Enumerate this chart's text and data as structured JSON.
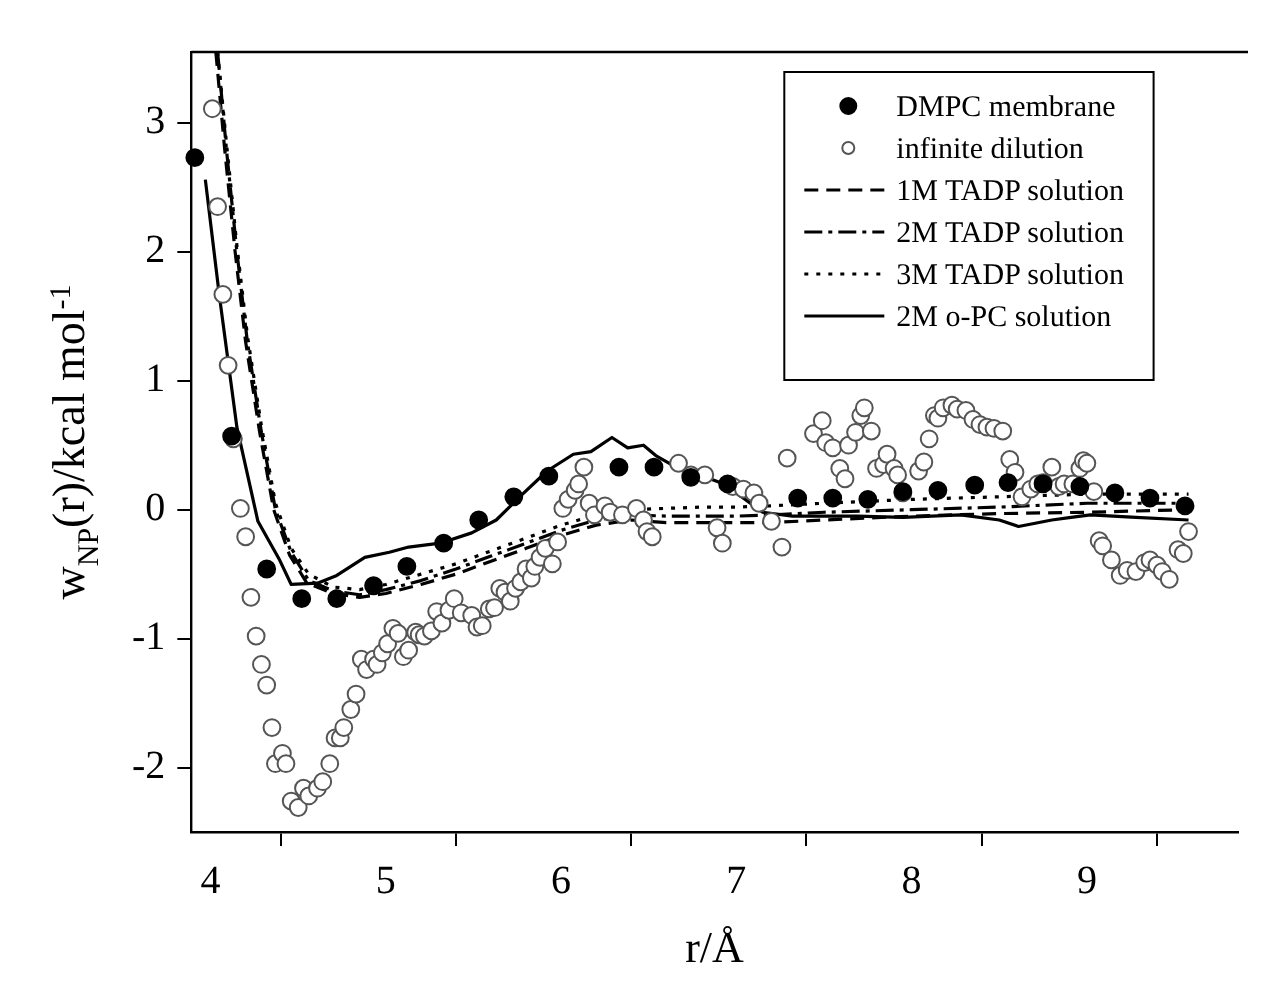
{
  "chart_data": {
    "type": "scatter",
    "xlabel": "r/Å",
    "ylabel": "w$_{NP}$(r)/kcal mol$^{-1}$",
    "xlim": [
      3.89,
      9.86
    ],
    "ylim": [
      -2.5,
      3.55
    ],
    "xticks": [
      4,
      {
        "value": 4.4,
        "label": null
      },
      5,
      {
        "value": 5.4,
        "label": null
      },
      6,
      {
        "value": 6.4,
        "label": null
      },
      7,
      {
        "value": 7.4,
        "label": null
      },
      8,
      {
        "value": 8.4,
        "label": null
      },
      9,
      {
        "value": 9.4,
        "label": null
      }
    ],
    "yticks": [
      -2,
      -1,
      0,
      1,
      2,
      3
    ],
    "grid": false,
    "legend": "top right",
    "series": [
      {
        "name": "DMPC membrane",
        "type": "scatter",
        "marker": "circle",
        "color": "#000000",
        "x": [
          3.91,
          4.12,
          4.32,
          4.52,
          4.72,
          4.93,
          5.12,
          5.33,
          5.53,
          5.73,
          5.93,
          6.33,
          6.53,
          6.74,
          6.95,
          7.35,
          7.55,
          7.75,
          7.95,
          8.15,
          8.36,
          8.55,
          8.75,
          8.96,
          9.16,
          9.36,
          9.56
        ],
        "values": [
          2.73,
          0.57,
          -0.46,
          -0.69,
          -0.69,
          -0.59,
          -0.44,
          -0.26,
          -0.08,
          0.1,
          0.26,
          0.33,
          0.33,
          0.25,
          0.2,
          0.09,
          0.09,
          0.08,
          0.14,
          0.15,
          0.19,
          0.21,
          0.2,
          0.18,
          0.13,
          0.09,
          0.03
        ]
      },
      {
        "name": "infinite dilution",
        "type": "scatter",
        "marker": "circle",
        "color": "#555555",
        "x": [
          4.01,
          4.04,
          4.07,
          4.1,
          4.13,
          4.17,
          4.2,
          4.23,
          4.26,
          4.29,
          4.32,
          4.35,
          4.37,
          4.41,
          4.43,
          4.46,
          4.5,
          4.53,
          4.56,
          4.61,
          4.64,
          4.68,
          4.71,
          4.74,
          4.76,
          4.8,
          4.83,
          4.86,
          4.89,
          4.93,
          4.95,
          4.98,
          5.01,
          5.04,
          5.07,
          5.1,
          5.13,
          5.17,
          5.19,
          5.22,
          5.26,
          5.29,
          5.32,
          5.36,
          5.39,
          5.43,
          5.49,
          5.52,
          5.55,
          5.59,
          5.62,
          5.65,
          5.68,
          5.71,
          5.74,
          5.77,
          5.8,
          5.83,
          5.85,
          5.88,
          5.91,
          5.95,
          5.98,
          6.01,
          6.04,
          6.08,
          6.1,
          6.13,
          6.16,
          6.19,
          6.25,
          6.28,
          6.35,
          6.43,
          6.47,
          6.49,
          6.52,
          6.67,
          6.74,
          6.82,
          6.89,
          6.92,
          6.98,
          7.04,
          7.1,
          7.13,
          7.2,
          7.26,
          7.29,
          7.44,
          7.49,
          7.51,
          7.55,
          7.59,
          7.62,
          7.64,
          7.68,
          7.71,
          7.73,
          7.77,
          7.8,
          7.84,
          7.86,
          7.9,
          7.92,
          7.95,
          8.04,
          8.07,
          8.1,
          8.13,
          8.15,
          8.18,
          8.23,
          8.26,
          8.31,
          8.35,
          8.39,
          8.43,
          8.47,
          8.52,
          8.56,
          8.59,
          8.63,
          8.68,
          8.72,
          8.75,
          8.8,
          8.84,
          8.87,
          8.92,
          8.96,
          8.98,
          9.0,
          9.04,
          9.07,
          9.09,
          9.14,
          9.19,
          9.23,
          9.28,
          9.33,
          9.36,
          9.4,
          9.43,
          9.47,
          9.52,
          9.55,
          9.58
        ],
        "values": [
          3.11,
          2.35,
          1.67,
          1.12,
          0.55,
          0.01,
          -0.21,
          -0.68,
          -0.98,
          -1.2,
          -1.36,
          -1.69,
          -1.97,
          -1.89,
          -1.97,
          -2.26,
          -2.31,
          -2.16,
          -2.22,
          -2.16,
          -2.11,
          -1.97,
          -1.77,
          -1.77,
          -1.69,
          -1.55,
          -1.43,
          -1.16,
          -1.24,
          -1.16,
          -1.2,
          -1.11,
          -1.04,
          -0.92,
          -0.96,
          -1.14,
          -1.09,
          -0.95,
          -0.97,
          -0.98,
          -0.94,
          -0.79,
          -0.88,
          -0.78,
          -0.69,
          -0.8,
          -0.82,
          -0.91,
          -0.9,
          -0.77,
          -0.76,
          -0.61,
          -0.64,
          -0.71,
          -0.61,
          -0.56,
          -0.46,
          -0.53,
          -0.44,
          -0.37,
          -0.3,
          -0.42,
          -0.25,
          0.01,
          0.08,
          0.15,
          0.2,
          0.33,
          0.05,
          -0.04,
          0.03,
          -0.02,
          -0.04,
          0.01,
          -0.08,
          -0.17,
          -0.21,
          0.36,
          0.27,
          0.27,
          -0.14,
          -0.26,
          0.18,
          0.16,
          0.13,
          0.05,
          -0.09,
          -0.29,
          0.4,
          0.59,
          0.69,
          0.52,
          0.48,
          0.32,
          0.24,
          0.5,
          0.6,
          0.73,
          0.79,
          0.61,
          0.32,
          0.35,
          0.43,
          0.32,
          0.27,
          0.13,
          0.3,
          0.37,
          0.55,
          0.73,
          0.71,
          0.79,
          0.81,
          0.78,
          0.77,
          0.7,
          0.66,
          0.64,
          0.63,
          0.61,
          0.39,
          0.29,
          0.1,
          0.16,
          0.2,
          0.21,
          0.33,
          0.18,
          0.2,
          0.2,
          0.32,
          0.38,
          0.36,
          0.14,
          -0.24,
          -0.28,
          -0.39,
          -0.51,
          -0.47,
          -0.48,
          -0.41,
          -0.39,
          -0.43,
          -0.48,
          -0.54,
          -0.31,
          -0.34,
          -0.17
        ]
      },
      {
        "name": "1M TADP solution",
        "type": "line",
        "line_style": "dashed",
        "color": "#000000",
        "x": [
          4.03,
          4.08,
          4.14,
          4.2,
          4.28,
          4.36,
          4.45,
          4.55,
          4.7,
          4.85,
          5.0,
          5.2,
          5.4,
          5.6,
          5.8,
          6.0,
          6.2,
          6.4,
          6.6,
          6.8,
          7.0,
          7.2,
          7.5,
          8.0,
          8.5,
          9.0,
          9.58
        ],
        "values": [
          3.55,
          2.8,
          2.0,
          1.3,
          0.6,
          0.0,
          -0.35,
          -0.57,
          -0.65,
          -0.68,
          -0.65,
          -0.58,
          -0.5,
          -0.4,
          -0.3,
          -0.2,
          -0.12,
          -0.08,
          -0.1,
          -0.1,
          -0.1,
          -0.1,
          -0.08,
          -0.05,
          -0.03,
          -0.02,
          0.0
        ]
      },
      {
        "name": "2M TADP solution",
        "type": "line",
        "line_style": "dashdot",
        "color": "#000000",
        "x": [
          4.04,
          4.09,
          4.15,
          4.21,
          4.29,
          4.37,
          4.46,
          4.56,
          4.7,
          4.85,
          5.0,
          5.2,
          5.4,
          5.6,
          5.8,
          6.0,
          6.2,
          6.4,
          6.6,
          6.8,
          7.0,
          7.2,
          7.5,
          8.0,
          8.5,
          9.0,
          9.58
        ],
        "values": [
          3.55,
          2.8,
          2.0,
          1.3,
          0.6,
          0.0,
          -0.33,
          -0.55,
          -0.63,
          -0.66,
          -0.62,
          -0.55,
          -0.46,
          -0.36,
          -0.26,
          -0.16,
          -0.08,
          -0.04,
          -0.05,
          -0.05,
          -0.05,
          -0.04,
          -0.02,
          0.0,
          0.02,
          0.05,
          0.05
        ]
      },
      {
        "name": "3M TADP solution",
        "type": "line",
        "line_style": "dotted",
        "color": "#000000",
        "x": [
          4.04,
          4.09,
          4.15,
          4.21,
          4.29,
          4.37,
          4.46,
          4.56,
          4.7,
          4.85,
          5.0,
          5.2,
          5.4,
          5.6,
          5.8,
          6.0,
          6.2,
          6.4,
          6.6,
          6.8,
          7.0,
          7.2,
          7.5,
          8.0,
          8.5,
          9.0,
          9.58
        ],
        "values": [
          3.55,
          2.85,
          2.05,
          1.35,
          0.65,
          0.05,
          -0.3,
          -0.5,
          -0.6,
          -0.62,
          -0.58,
          -0.5,
          -0.42,
          -0.32,
          -0.22,
          -0.12,
          -0.04,
          0.0,
          0.01,
          0.02,
          0.02,
          0.03,
          0.05,
          0.08,
          0.1,
          0.12,
          0.12
        ]
      },
      {
        "name": "2M o-PC solution",
        "type": "line",
        "line_style": "solid",
        "color": "#000000",
        "x": [
          3.97,
          4.05,
          4.15,
          4.27,
          4.39,
          4.46,
          4.61,
          4.72,
          4.8,
          4.88,
          5.02,
          5.13,
          5.31,
          5.49,
          5.63,
          5.78,
          5.92,
          6.07,
          6.17,
          6.29,
          6.38,
          6.47,
          6.54,
          6.63,
          6.93,
          7.15,
          7.32,
          7.69,
          7.95,
          8.28,
          8.5,
          8.61,
          8.8,
          8.91,
          9.02,
          9.28,
          9.58
        ],
        "values": [
          2.56,
          1.66,
          0.64,
          -0.09,
          -0.38,
          -0.58,
          -0.57,
          -0.51,
          -0.44,
          -0.37,
          -0.33,
          -0.29,
          -0.26,
          -0.18,
          -0.08,
          0.12,
          0.3,
          0.43,
          0.45,
          0.56,
          0.48,
          0.5,
          0.42,
          0.35,
          0.2,
          -0.02,
          -0.05,
          -0.05,
          -0.06,
          -0.04,
          -0.08,
          -0.13,
          -0.08,
          -0.06,
          -0.04,
          -0.06,
          -0.08
        ]
      }
    ]
  }
}
